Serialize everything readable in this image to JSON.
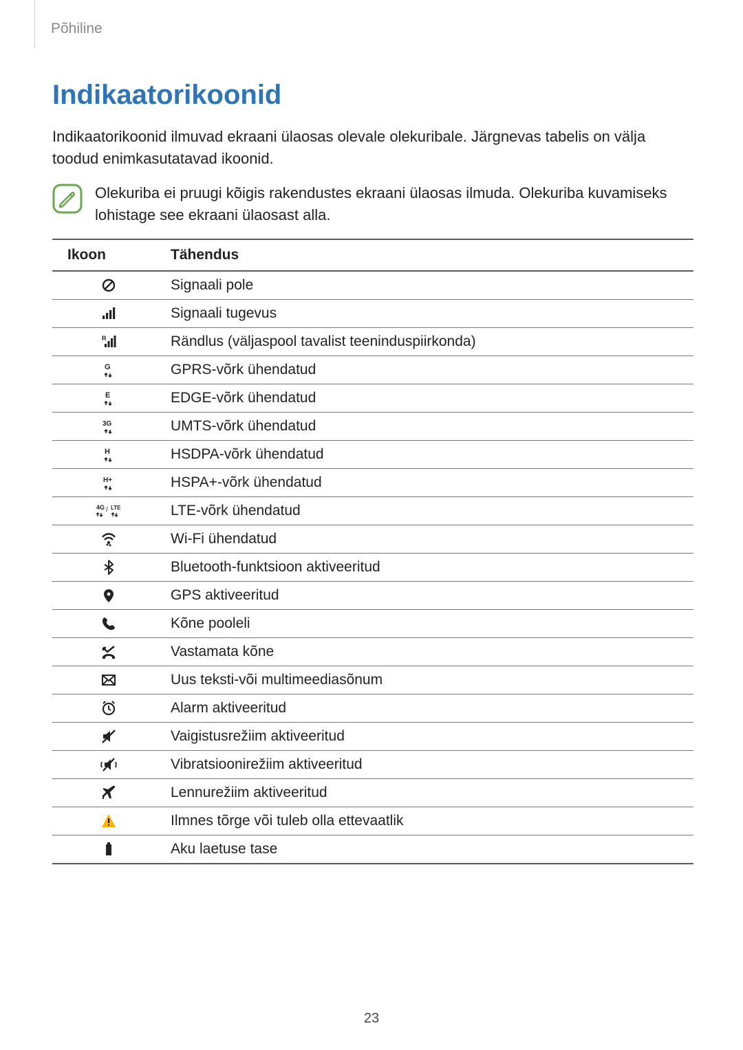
{
  "breadcrumb": "Põhiline",
  "title": "Indikaatorikoonid",
  "intro": "Indikaatorikoonid ilmuvad ekraani ülaosas olevale olekuribale. Järgnevas tabelis on välja toodud enimkasutatavad ikoonid.",
  "note": "Olekuriba ei pruugi kõigis rakendustes ekraani ülaosas ilmuda. Olekuriba kuvamiseks lohistage see ekraani ülaosast alla.",
  "table": {
    "headers": {
      "icon": "Ikoon",
      "meaning": "Tähendus"
    },
    "rows": [
      {
        "icon": "no-signal",
        "meaning": "Signaali pole"
      },
      {
        "icon": "signal-strength",
        "meaning": "Signaali tugevus"
      },
      {
        "icon": "roaming",
        "meaning": "Rändlus (väljaspool tavalist teeninduspiirkonda)"
      },
      {
        "icon": "gprs",
        "meaning": "GPRS-võrk ühendatud"
      },
      {
        "icon": "edge",
        "meaning": "EDGE-võrk ühendatud"
      },
      {
        "icon": "umts",
        "meaning": "UMTS-võrk ühendatud"
      },
      {
        "icon": "hsdpa",
        "meaning": "HSDPA-võrk ühendatud"
      },
      {
        "icon": "hspa-plus",
        "meaning": "HSPA+-võrk ühendatud"
      },
      {
        "icon": "lte",
        "meaning": "LTE-võrk ühendatud"
      },
      {
        "icon": "wifi",
        "meaning": "Wi-Fi ühendatud"
      },
      {
        "icon": "bluetooth",
        "meaning": "Bluetooth-funktsioon aktiveeritud"
      },
      {
        "icon": "gps",
        "meaning": "GPS aktiveeritud"
      },
      {
        "icon": "call",
        "meaning": "Kõne pooleli"
      },
      {
        "icon": "missed-call",
        "meaning": "Vastamata kõne"
      },
      {
        "icon": "message",
        "meaning": "Uus teksti-või multimeediasõnum"
      },
      {
        "icon": "alarm",
        "meaning": "Alarm aktiveeritud"
      },
      {
        "icon": "mute",
        "meaning": "Vaigistusrežiim aktiveeritud"
      },
      {
        "icon": "vibrate",
        "meaning": "Vibratsioonirežiim aktiveeritud"
      },
      {
        "icon": "airplane",
        "meaning": "Lennurežiim aktiveeritud"
      },
      {
        "icon": "warning",
        "meaning": "Ilmnes tõrge või tuleb olla ettevaatlik"
      },
      {
        "icon": "battery",
        "meaning": "Aku laetuse tase"
      }
    ]
  },
  "page_number": "23",
  "colors": {
    "heading": "#2f75b5",
    "note_icon_outline": "#6aa84f",
    "note_icon_fill": "#ffffff",
    "warning_fill": "#ffb400",
    "icon_color": "#222222",
    "rule": "#5a5a5a"
  }
}
